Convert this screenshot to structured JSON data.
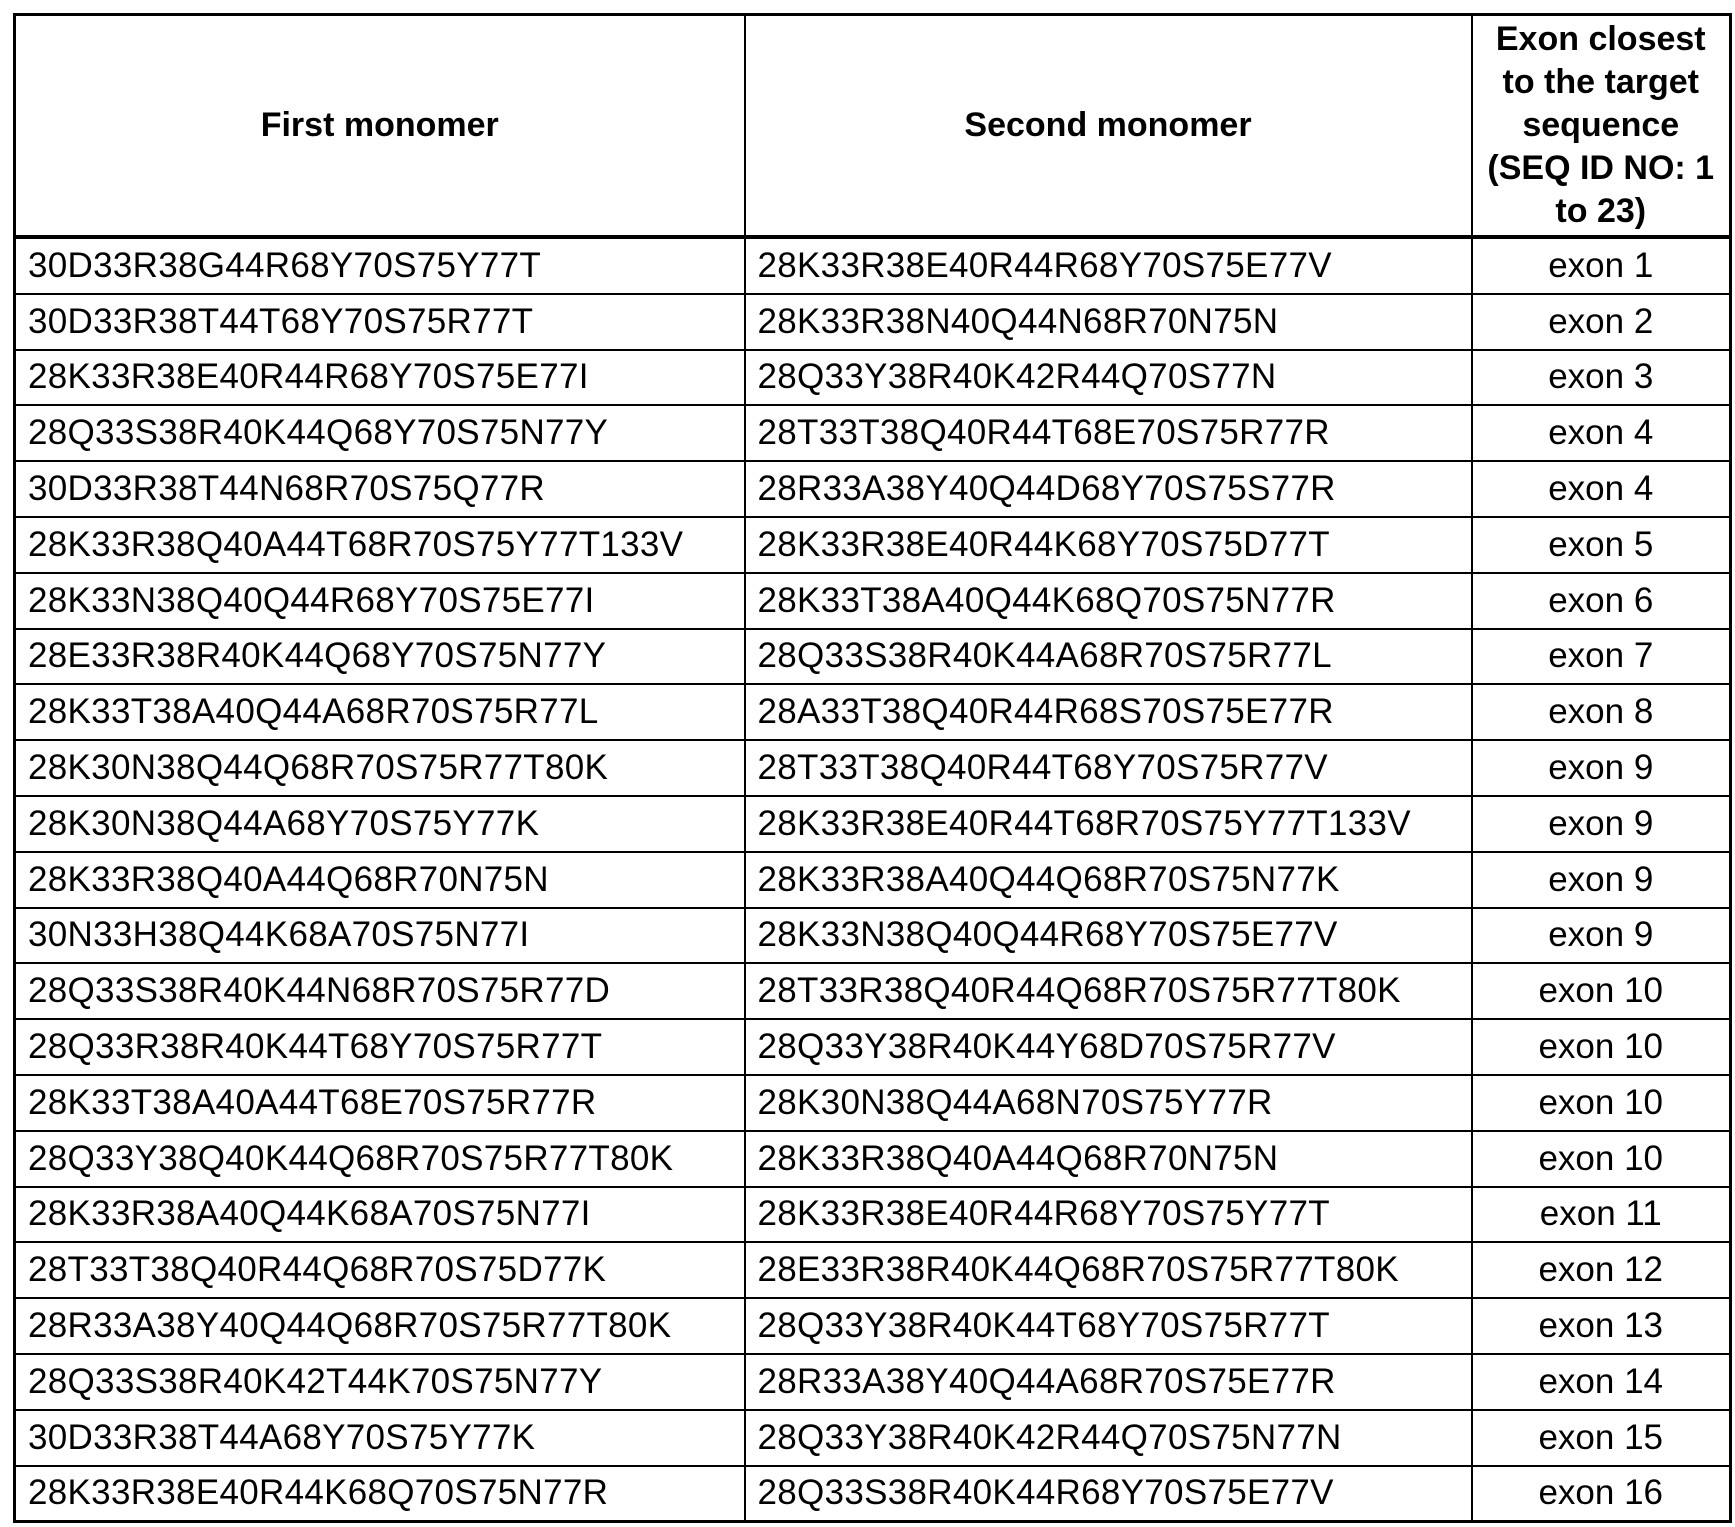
{
  "table": {
    "headers": [
      "First monomer",
      "Second monomer",
      "Exon closest to the target sequence (SEQ ID NO: 1 to 23)"
    ],
    "rows": [
      [
        "30D33R38G44R68Y70S75Y77T",
        "28K33R38E40R44R68Y70S75E77V",
        "exon 1"
      ],
      [
        "30D33R38T44T68Y70S75R77T",
        "28K33R38N40Q44N68R70N75N",
        "exon 2"
      ],
      [
        "28K33R38E40R44R68Y70S75E77I",
        "28Q33Y38R40K42R44Q70S77N",
        "exon 3"
      ],
      [
        "28Q33S38R40K44Q68Y70S75N77Y",
        "28T33T38Q40R44T68E70S75R77R",
        "exon 4"
      ],
      [
        "30D33R38T44N68R70S75Q77R",
        "28R33A38Y40Q44D68Y70S75S77R",
        "exon 4"
      ],
      [
        "28K33R38Q40A44T68R70S75Y77T133V",
        "28K33R38E40R44K68Y70S75D77T",
        "exon 5"
      ],
      [
        "28K33N38Q40Q44R68Y70S75E77I",
        "28K33T38A40Q44K68Q70S75N77R",
        "exon 6"
      ],
      [
        "28E33R38R40K44Q68Y70S75N77Y",
        "28Q33S38R40K44A68R70S75R77L",
        "exon 7"
      ],
      [
        "28K33T38A40Q44A68R70S75R77L",
        "28A33T38Q40R44R68S70S75E77R",
        "exon 8"
      ],
      [
        "28K30N38Q44Q68R70S75R77T80K",
        "28T33T38Q40R44T68Y70S75R77V",
        "exon 9"
      ],
      [
        "28K30N38Q44A68Y70S75Y77K",
        "28K33R38E40R44T68R70S75Y77T133V",
        "exon 9"
      ],
      [
        "28K33R38Q40A44Q68R70N75N",
        "28K33R38A40Q44Q68R70S75N77K",
        "exon 9"
      ],
      [
        "30N33H38Q44K68A70S75N77I",
        "28K33N38Q40Q44R68Y70S75E77V",
        "exon 9"
      ],
      [
        "28Q33S38R40K44N68R70S75R77D",
        "28T33R38Q40R44Q68R70S75R77T80K",
        "exon 10"
      ],
      [
        "28Q33R38R40K44T68Y70S75R77T",
        "28Q33Y38R40K44Y68D70S75R77V",
        "exon 10"
      ],
      [
        "28K33T38A40A44T68E70S75R77R",
        "28K30N38Q44A68N70S75Y77R",
        "exon 10"
      ],
      [
        "28Q33Y38Q40K44Q68R70S75R77T80K",
        "28K33R38Q40A44Q68R70N75N",
        "exon 10"
      ],
      [
        "28K33R38A40Q44K68A70S75N77I",
        "28K33R38E40R44R68Y70S75Y77T",
        "exon 11"
      ],
      [
        "28T33T38Q40R44Q68R70S75D77K",
        "28E33R38R40K44Q68R70S75R77T80K",
        "exon 12"
      ],
      [
        "28R33A38Y40Q44Q68R70S75R77T80K",
        "28Q33Y38R40K44T68Y70S75R77T",
        "exon 13"
      ],
      [
        "28Q33S38R40K42T44K70S75N77Y",
        "28R33A38Y40Q44A68R70S75E77R",
        "exon 14"
      ],
      [
        "30D33R38T44A68Y70S75Y77K",
        "28Q33Y38R40K42R44Q70S75N77N",
        "exon 15"
      ],
      [
        "28K33R38E40R44K68Q70S75N77R",
        "28Q33S38R40K44R68Y70S75E77V",
        "exon 16"
      ]
    ]
  }
}
